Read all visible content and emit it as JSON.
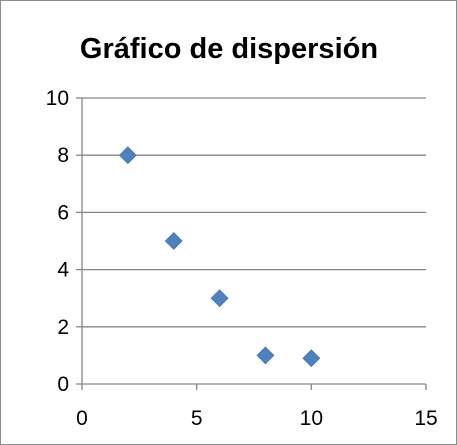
{
  "chart_data": {
    "type": "scatter",
    "title": "Gráfico de dispersión",
    "xlabel": "",
    "ylabel": "",
    "xlim": [
      0,
      15
    ],
    "ylim": [
      0,
      10
    ],
    "x_ticks": [
      0,
      5,
      10,
      15
    ],
    "y_ticks": [
      0,
      2,
      4,
      6,
      8,
      10
    ],
    "grid": "horizontal",
    "legend": "none",
    "marker": "diamond",
    "series": [
      {
        "x": [
          2,
          4,
          6,
          8,
          10
        ],
        "y": [
          8,
          5,
          3,
          1,
          0.9
        ],
        "color": "#4f81bd"
      }
    ]
  }
}
